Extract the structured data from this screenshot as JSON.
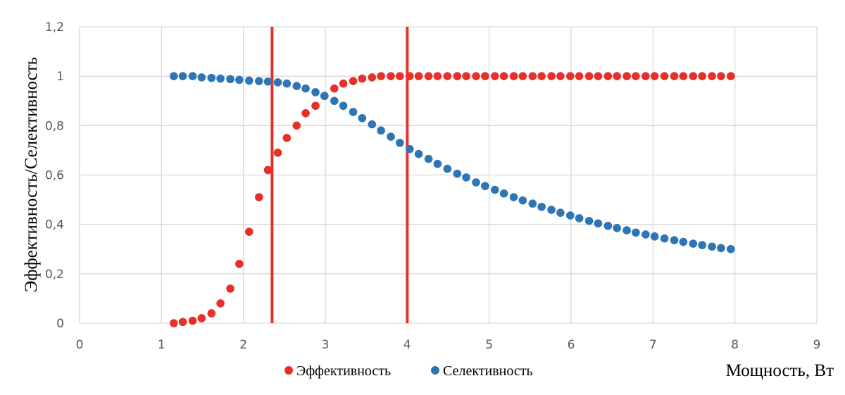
{
  "chart_data": {
    "type": "scatter",
    "title": "",
    "xlabel": "Мощность, Вт",
    "ylabel": "Эффективность/Селективность",
    "xlim": [
      0,
      9
    ],
    "ylim": [
      0,
      1.2
    ],
    "xticks": [
      "0",
      "1",
      "2",
      "3",
      "4",
      "5",
      "6",
      "7",
      "8",
      "9"
    ],
    "yticks": [
      "0",
      "0,2",
      "0,4",
      "0,6",
      "0,8",
      "1",
      "1,2"
    ],
    "grid": true,
    "legend_position": "bottom",
    "vertical_lines": [
      {
        "x": 2.35,
        "color": "#e8302a"
      },
      {
        "x": 4.0,
        "color": "#e8302a"
      }
    ],
    "series": [
      {
        "name": "Эффективность",
        "color": "#e8302a",
        "x": [
          1.15,
          1.26,
          1.38,
          1.49,
          1.61,
          1.72,
          1.84,
          1.95,
          2.07,
          2.19,
          2.3,
          2.42,
          2.53,
          2.65,
          2.76,
          2.88,
          2.99,
          3.11,
          3.22,
          3.34,
          3.45,
          3.57,
          3.68,
          3.8,
          3.91,
          4.03,
          4.14,
          4.26,
          4.37,
          4.49,
          4.61,
          4.72,
          4.84,
          4.95,
          5.07,
          5.18,
          5.3,
          5.41,
          5.53,
          5.64,
          5.76,
          5.87,
          5.99,
          6.1,
          6.22,
          6.33,
          6.45,
          6.56,
          6.68,
          6.79,
          6.91,
          7.02,
          7.14,
          7.26,
          7.37,
          7.49,
          7.6,
          7.72,
          7.83,
          7.95
        ],
        "y": [
          0.0,
          0.005,
          0.01,
          0.02,
          0.04,
          0.08,
          0.14,
          0.24,
          0.37,
          0.51,
          0.62,
          0.69,
          0.75,
          0.8,
          0.85,
          0.88,
          0.92,
          0.95,
          0.97,
          0.98,
          0.99,
          0.995,
          1.0,
          1.0,
          1.0,
          1.0,
          1.0,
          1.0,
          1.0,
          1.0,
          1.0,
          1.0,
          1.0,
          1.0,
          1.0,
          1.0,
          1.0,
          1.0,
          1.0,
          1.0,
          1.0,
          1.0,
          1.0,
          1.0,
          1.0,
          1.0,
          1.0,
          1.0,
          1.0,
          1.0,
          1.0,
          1.0,
          1.0,
          1.0,
          1.0,
          1.0,
          1.0,
          1.0,
          1.0,
          1.0
        ]
      },
      {
        "name": "Селективность",
        "color": "#2e75b6",
        "x": [
          1.15,
          1.26,
          1.38,
          1.49,
          1.61,
          1.72,
          1.84,
          1.95,
          2.07,
          2.19,
          2.3,
          2.42,
          2.53,
          2.65,
          2.76,
          2.88,
          2.99,
          3.11,
          3.22,
          3.34,
          3.45,
          3.57,
          3.68,
          3.8,
          3.91,
          4.03,
          4.14,
          4.26,
          4.37,
          4.49,
          4.61,
          4.72,
          4.84,
          4.95,
          5.07,
          5.18,
          5.3,
          5.41,
          5.53,
          5.64,
          5.76,
          5.87,
          5.99,
          6.1,
          6.22,
          6.33,
          6.45,
          6.56,
          6.68,
          6.79,
          6.91,
          7.02,
          7.14,
          7.26,
          7.37,
          7.49,
          7.6,
          7.72,
          7.83,
          7.95
        ],
        "y": [
          1.0,
          1.0,
          1.0,
          0.995,
          0.993,
          0.99,
          0.988,
          0.985,
          0.982,
          0.98,
          0.978,
          0.975,
          0.97,
          0.96,
          0.95,
          0.935,
          0.92,
          0.9,
          0.88,
          0.855,
          0.83,
          0.805,
          0.78,
          0.755,
          0.73,
          0.705,
          0.685,
          0.665,
          0.645,
          0.625,
          0.605,
          0.59,
          0.57,
          0.555,
          0.54,
          0.525,
          0.51,
          0.497,
          0.484,
          0.471,
          0.459,
          0.447,
          0.436,
          0.425,
          0.414,
          0.404,
          0.394,
          0.385,
          0.376,
          0.367,
          0.359,
          0.351,
          0.343,
          0.336,
          0.329,
          0.322,
          0.316,
          0.31,
          0.304,
          0.3
        ]
      }
    ]
  }
}
